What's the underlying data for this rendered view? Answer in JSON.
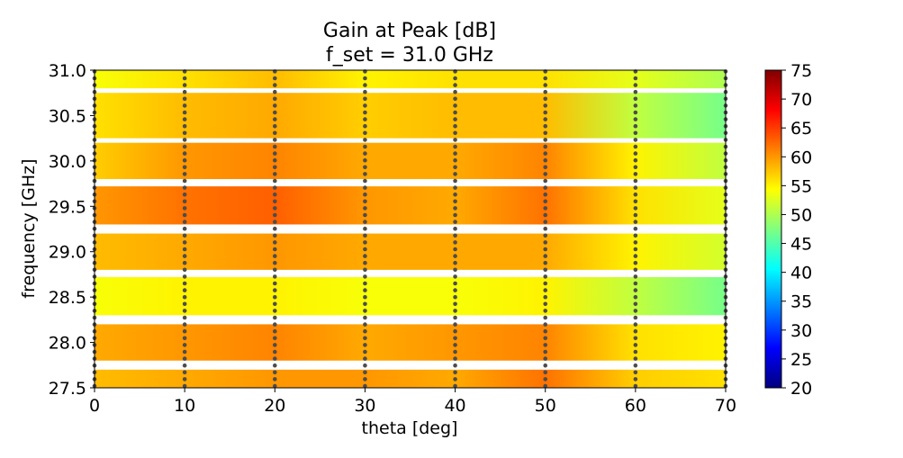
{
  "chart_data": {
    "type": "heatmap",
    "title": "Gain at Peak [dB]",
    "subtitle": "f_set = 31.0 GHz",
    "xlabel": "theta [deg]",
    "ylabel": "frequency [GHz]",
    "xlim": [
      0,
      70
    ],
    "ylim": [
      27.5,
      31.0
    ],
    "x_ticks": [
      0,
      10,
      20,
      30,
      40,
      50,
      60,
      70
    ],
    "y_ticks": [
      27.5,
      28.0,
      28.5,
      29.0,
      29.5,
      30.0,
      30.5,
      31.0
    ],
    "y_tick_labels": [
      "27.5",
      "28.0",
      "28.5",
      "29.0",
      "29.5",
      "30.0",
      "30.5",
      "31.0"
    ],
    "colorbar": {
      "min": 20,
      "max": 75,
      "ticks": [
        20,
        25,
        30,
        35,
        40,
        45,
        50,
        55,
        60,
        65,
        70,
        75
      ],
      "colormap": "jet"
    },
    "theta_samples": [
      0,
      10,
      20,
      30,
      40,
      50,
      60,
      70
    ],
    "bands": [
      {
        "frequency": 31.0,
        "range": [
          30.8,
          31.0
        ],
        "values": [
          54,
          56,
          58,
          55,
          56,
          56,
          53,
          50
        ]
      },
      {
        "frequency": 30.5,
        "range": [
          30.25,
          30.75
        ],
        "values": [
          56,
          58,
          59,
          57,
          58,
          58,
          51,
          47
        ]
      },
      {
        "frequency": 30.0,
        "range": [
          29.8,
          30.2
        ],
        "values": [
          57,
          60,
          61,
          59,
          59,
          61,
          55,
          51
        ]
      },
      {
        "frequency": 29.5,
        "range": [
          29.3,
          29.72
        ],
        "values": [
          60,
          62,
          63,
          60,
          59,
          62,
          56,
          53
        ]
      },
      {
        "frequency": 29.0,
        "range": [
          28.8,
          29.2
        ],
        "values": [
          58,
          59,
          60,
          59,
          59,
          59,
          55,
          52
        ]
      },
      {
        "frequency": 28.5,
        "range": [
          28.3,
          28.72
        ],
        "values": [
          54,
          55,
          55,
          54,
          54,
          55,
          51,
          47
        ]
      },
      {
        "frequency": 28.0,
        "range": [
          27.8,
          28.2
        ],
        "values": [
          59,
          60,
          61,
          59,
          60,
          61,
          56,
          55
        ]
      },
      {
        "frequency": 27.5,
        "range": [
          27.5,
          27.7
        ],
        "values": [
          58,
          59,
          60,
          60,
          59,
          62,
          57,
          56
        ]
      }
    ],
    "marker_columns": [
      0,
      10,
      20,
      30,
      40,
      50,
      60,
      70
    ],
    "marker_color": "#4d4d4d"
  }
}
